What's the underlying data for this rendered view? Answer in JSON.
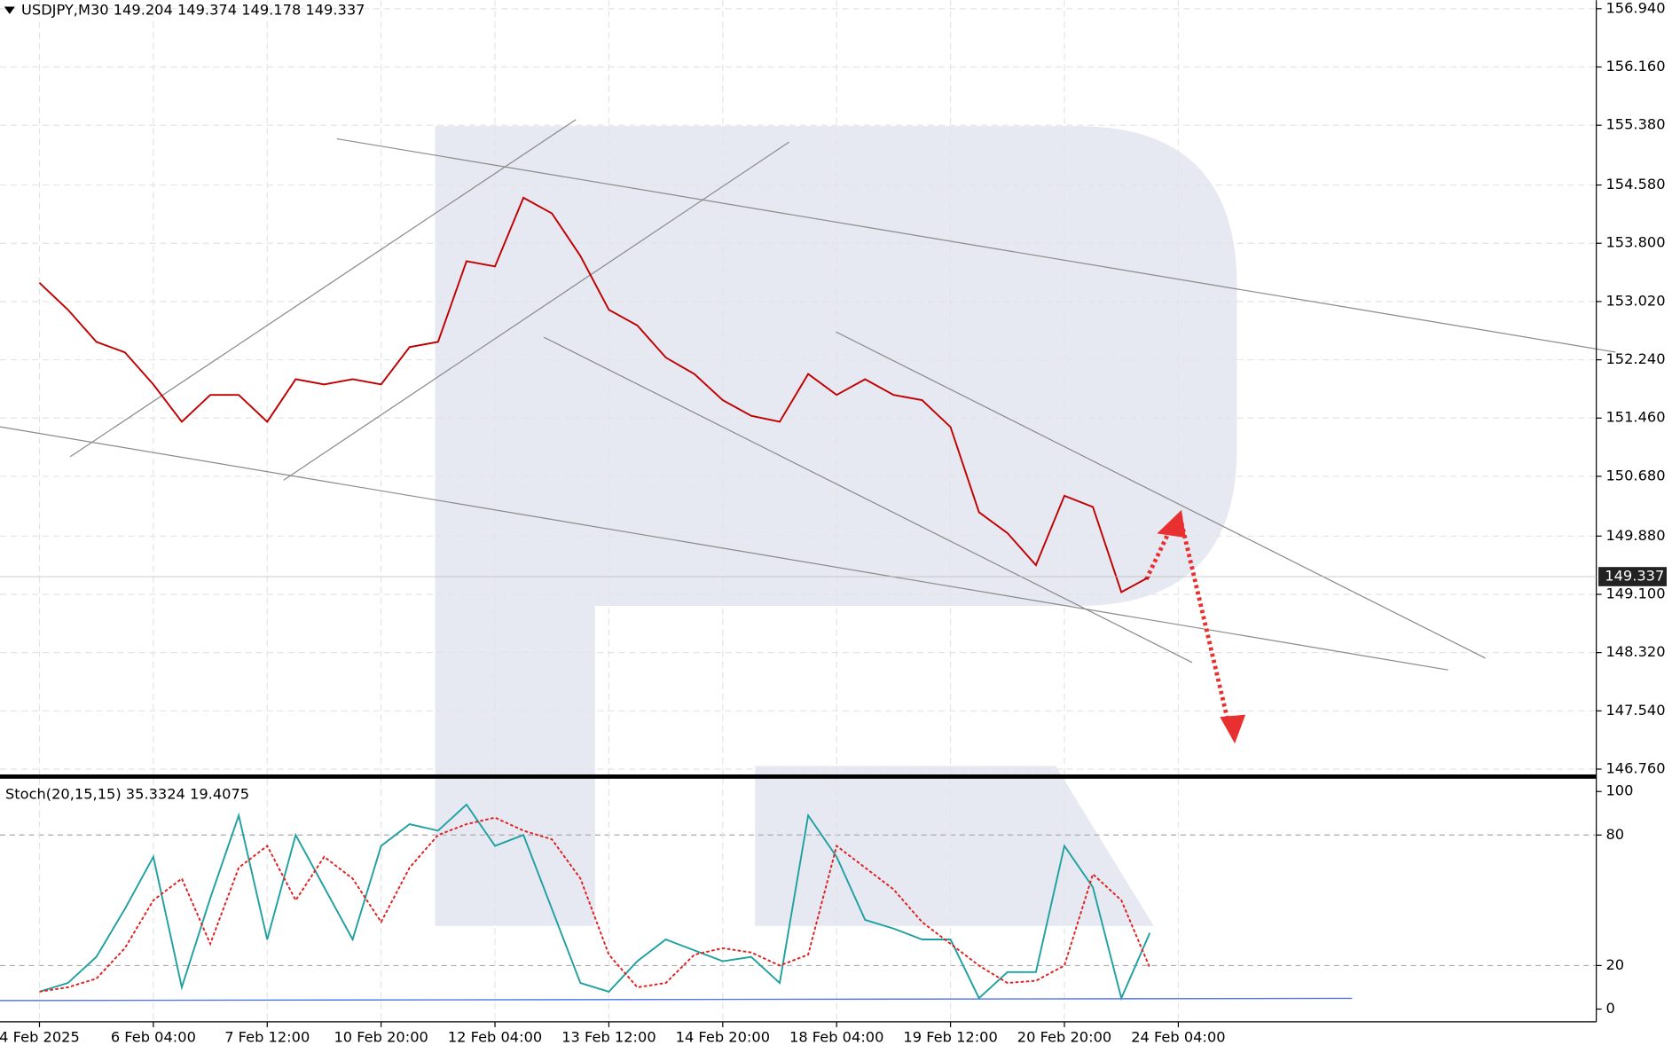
{
  "chart_data": [
    {
      "type": "line",
      "title": "USDJPY,M30  149.204 149.374 149.178 149.337",
      "categories": [
        "4 Feb 2025",
        null,
        null,
        null,
        "6 Feb 04:00",
        null,
        null,
        null,
        "7 Feb 12:00",
        null,
        null,
        null,
        "10 Feb 20:00",
        null,
        null,
        null,
        "12 Feb 04:00",
        null,
        null,
        null,
        "13 Feb 12:00",
        null,
        null,
        null,
        "14 Feb 20:00",
        null,
        null,
        null,
        "18 Feb 04:00",
        null,
        null,
        null,
        "19 Feb 12:00",
        null,
        null,
        null,
        "20 Feb 20:00",
        null,
        null,
        null,
        "24 Feb 04:00"
      ],
      "series": [
        {
          "color": "#c00000",
          "values": [
            153.27,
            152.91,
            152.48,
            152.34,
            151.91,
            151.41,
            151.77,
            151.77,
            151.41,
            151.98,
            151.91,
            151.98,
            151.91,
            152.41,
            152.48,
            153.56,
            153.49,
            154.41,
            154.2,
            153.63,
            152.91,
            152.7,
            152.27,
            152.05,
            151.7,
            151.49,
            151.41,
            152.05,
            151.77,
            151.98,
            151.77,
            151.7,
            151.34,
            150.2,
            149.92,
            149.49,
            150.42,
            150.27,
            149.13,
            149.337,
            null
          ]
        }
      ],
      "ylim": [
        146.76,
        156.94
      ],
      "yticks": [
        {
          "value": 156.94,
          "label": "156.940"
        },
        {
          "value": 156.16,
          "label": "156.160"
        },
        {
          "value": 155.38,
          "label": "155.380"
        },
        {
          "value": 154.58,
          "label": "154.580"
        },
        {
          "value": 153.8,
          "label": "153.800"
        },
        {
          "value": 153.02,
          "label": "153.020"
        },
        {
          "value": 152.24,
          "label": "152.240"
        },
        {
          "value": 151.46,
          "label": "151.460"
        },
        {
          "value": 150.68,
          "label": "150.680"
        },
        {
          "value": 149.88,
          "label": "149.880"
        },
        {
          "value": 149.1,
          "label": "149.100"
        },
        {
          "value": 148.32,
          "label": "148.320"
        },
        {
          "value": 147.54,
          "label": "147.540"
        },
        {
          "value": 146.76,
          "label": "146.760"
        }
      ],
      "last_price": 149.337,
      "grid": true
    },
    {
      "type": "line",
      "title": "Stoch(20,15,15) 35.3324 19.4075",
      "series": [
        {
          "color": "#20a0a0",
          "values": [
            8,
            12,
            24,
            46,
            70,
            10,
            51,
            89,
            32,
            80,
            56,
            32,
            75,
            85,
            82,
            94,
            75,
            80,
            46,
            12,
            8,
            22,
            32,
            27,
            22,
            24,
            12,
            89,
            70,
            41,
            37,
            32,
            32,
            5,
            17,
            17,
            75,
            56,
            5,
            35,
            null
          ]
        },
        {
          "color": "#e02020",
          "dashed": true,
          "values": [
            8,
            10,
            14,
            28,
            50,
            60,
            30,
            65,
            75,
            50,
            70,
            60,
            40,
            65,
            80,
            85,
            88,
            82,
            78,
            60,
            25,
            10,
            12,
            25,
            28,
            26,
            20,
            25,
            75,
            65,
            55,
            40,
            30,
            20,
            12,
            13,
            20,
            62,
            50,
            19,
            null
          ]
        }
      ],
      "ylim": [
        0,
        100
      ],
      "yticks": [
        100,
        80,
        20,
        0
      ]
    }
  ]
}
